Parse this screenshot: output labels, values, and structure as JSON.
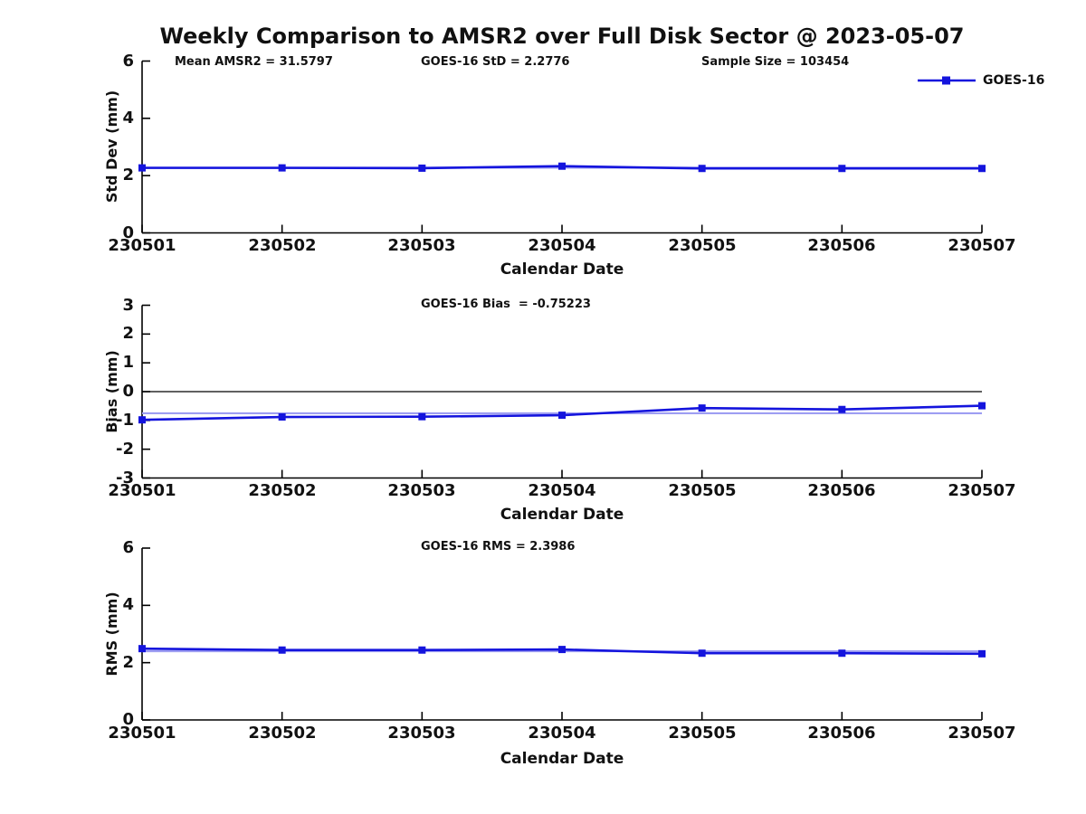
{
  "title": "Weekly Comparison to AMSR2 over Full Disk Sector @ 2023-05-07",
  "legend": {
    "label": "GOES-16"
  },
  "colors": {
    "data_line": "#1414dd",
    "mean_line": "#9e9ef2",
    "zero_line": "#000000",
    "axis": "#000000",
    "text": "#111111",
    "background": "#ffffff"
  },
  "chart_data": [
    {
      "type": "line",
      "name": "std-dev",
      "ylabel": "Std Dev (mm)",
      "xlabel": "Calendar Date",
      "categories": [
        "230501",
        "230502",
        "230503",
        "230504",
        "230505",
        "230506",
        "230507"
      ],
      "series": [
        {
          "name": "GOES-16",
          "values": [
            2.27,
            2.27,
            2.26,
            2.33,
            2.25,
            2.25,
            2.25
          ]
        }
      ],
      "mean_line": 2.2776,
      "ylim": [
        0,
        6
      ],
      "yticks": [
        "0",
        "2",
        "4",
        "6"
      ],
      "grid": false,
      "legend_position": "top-right-outside",
      "annotations": [
        "Mean AMSR2 = 31.5797",
        "GOES-16 StD = 2.2776",
        "Sample Size = 103454"
      ]
    },
    {
      "type": "line",
      "name": "bias",
      "ylabel": "Bias (mm)",
      "xlabel": "Calendar Date",
      "categories": [
        "230501",
        "230502",
        "230503",
        "230504",
        "230505",
        "230506",
        "230507"
      ],
      "series": [
        {
          "name": "GOES-16",
          "values": [
            -0.98,
            -0.88,
            -0.87,
            -0.82,
            -0.57,
            -0.62,
            -0.49
          ]
        }
      ],
      "mean_line": -0.75223,
      "zero_line": true,
      "ylim": [
        -3,
        3
      ],
      "yticks": [
        "-3",
        "-2",
        "-1",
        "0",
        "1",
        "2",
        "3"
      ],
      "grid": false,
      "annotations": [
        "GOES-16 Bias  = -0.75223"
      ]
    },
    {
      "type": "line",
      "name": "rms",
      "ylabel": "RMS (mm)",
      "xlabel": "Calendar Date",
      "categories": [
        "230501",
        "230502",
        "230503",
        "230504",
        "230505",
        "230506",
        "230507"
      ],
      "series": [
        {
          "name": "GOES-16",
          "values": [
            2.49,
            2.44,
            2.44,
            2.46,
            2.33,
            2.33,
            2.31
          ]
        }
      ],
      "mean_line": 2.3986,
      "ylim": [
        0,
        6
      ],
      "yticks": [
        "0",
        "2",
        "4",
        "6"
      ],
      "grid": false,
      "annotations": [
        "GOES-16 RMS = 2.3986"
      ]
    }
  ]
}
